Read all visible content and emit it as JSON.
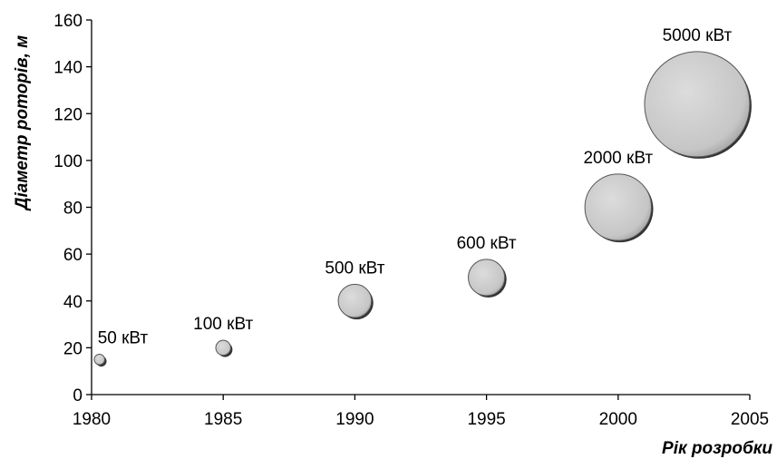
{
  "chart_data": {
    "type": "bubble",
    "title": "",
    "xlabel": "Рік розробки",
    "ylabel": "Діаметр роторів, м",
    "xlim": [
      1980,
      2005
    ],
    "ylim": [
      0,
      160
    ],
    "xticks": [
      "1980",
      "1985",
      "1990",
      "1995",
      "2000",
      "2005"
    ],
    "yticks": [
      "0",
      "20",
      "40",
      "60",
      "80",
      "100",
      "120",
      "140",
      "160"
    ],
    "grid": false,
    "legend": "none",
    "bubble_color": "#c8c8c8",
    "points": [
      {
        "x": 1980.3,
        "y": 15,
        "size": 50,
        "label": "50 кВт"
      },
      {
        "x": 1985,
        "y": 20,
        "size": 100,
        "label": "100 кВт"
      },
      {
        "x": 1990,
        "y": 40,
        "size": 500,
        "label": "500 кВт"
      },
      {
        "x": 1995,
        "y": 50,
        "size": 600,
        "label": "600 кВт"
      },
      {
        "x": 2000,
        "y": 80,
        "size": 2000,
        "label": "2000 кВт"
      },
      {
        "x": 2003,
        "y": 124,
        "size": 5000,
        "label": "5000 кВт"
      }
    ]
  }
}
